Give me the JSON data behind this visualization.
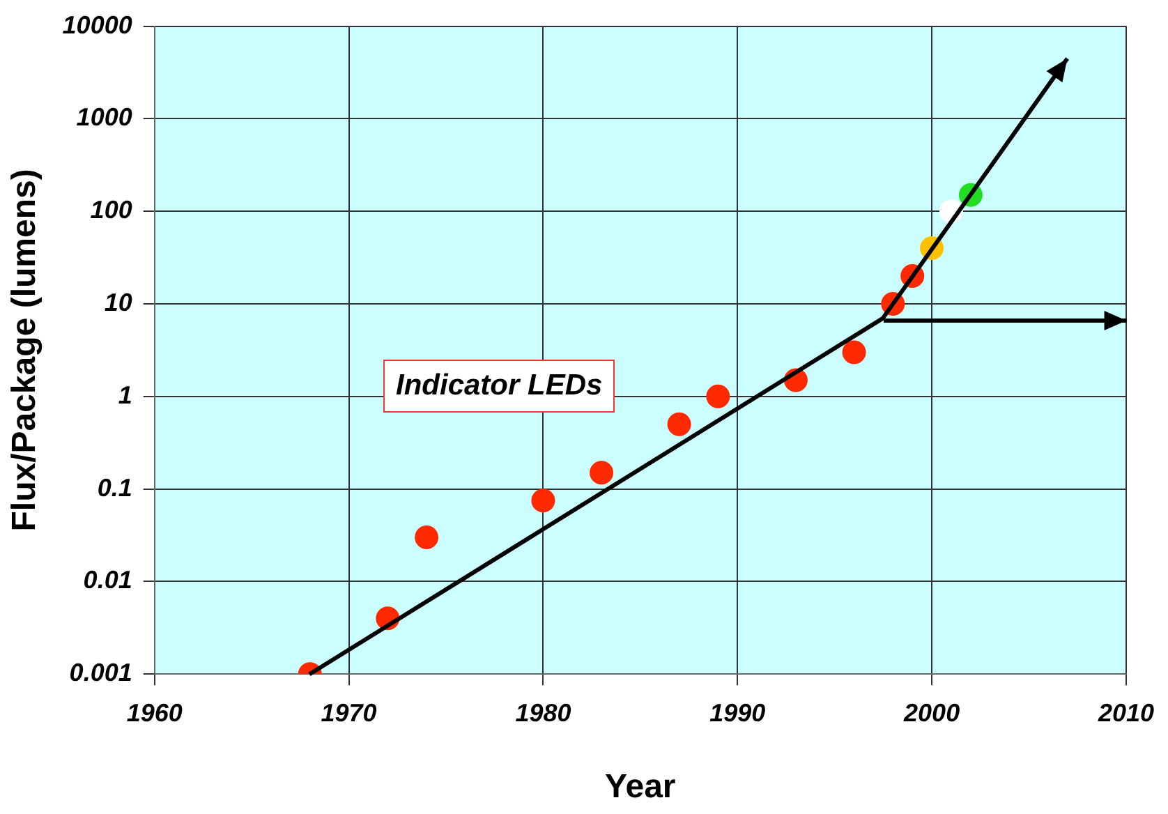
{
  "chart_data": {
    "type": "scatter",
    "xlabel": "Year",
    "ylabel": "Flux/Package (lumens)",
    "annotations": [
      "Indicator LEDs"
    ],
    "xlim": [
      1960,
      2010
    ],
    "xticks": [
      1960,
      1970,
      1980,
      1990,
      2000,
      2010
    ],
    "ylim": [
      0.001,
      10000
    ],
    "yticks": [
      0.001,
      0.01,
      0.1,
      1,
      10,
      100,
      1000,
      10000
    ],
    "log": "y",
    "grid": true,
    "legend": false,
    "marker": "circle",
    "series": [
      {
        "x": [
          1968,
          1972,
          1974,
          1980,
          1983,
          1987,
          1989,
          1993,
          1996,
          1998,
          1999,
          2000,
          2001,
          2002
        ],
        "values": [
          0.001,
          0.004,
          0.03,
          0.075,
          0.15,
          0.5,
          1,
          1.5,
          3,
          10,
          20,
          40,
          100,
          150
        ],
        "colors": [
          "#ff2a00",
          "#ff2a00",
          "#ff2a00",
          "#ff2a00",
          "#ff2a00",
          "#ff2a00",
          "#ff2a00",
          "#ff2a00",
          "#ff2a00",
          "#ff2a00",
          "#ff2a00",
          "#ffc000",
          "#ffffff",
          "#22dd22"
        ]
      }
    ]
  }
}
